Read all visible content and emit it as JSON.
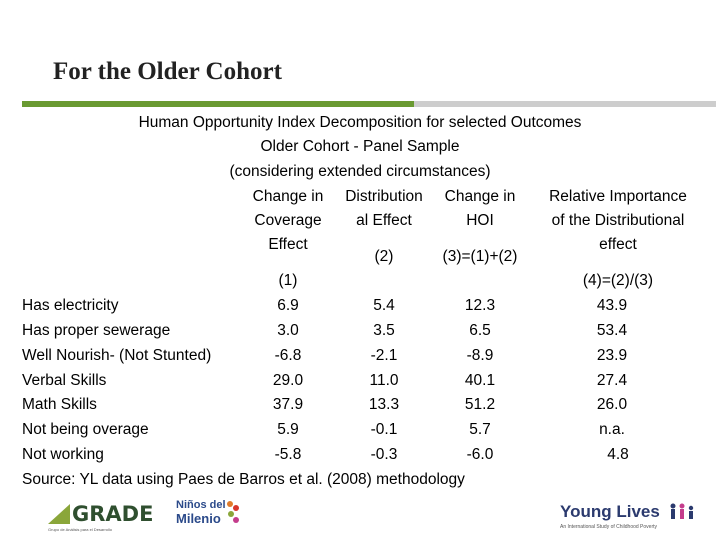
{
  "slide": {
    "title": "For the Older Cohort"
  },
  "table": {
    "title_lines": [
      "Human Opportunity Index Decomposition for selected Outcomes",
      "Older Cohort - Panel Sample",
      "(considering extended circumstances)"
    ],
    "headers": {
      "col1": [
        "Change in",
        "Coverage",
        "Effect"
      ],
      "col2": [
        "Distribution",
        "al Effect"
      ],
      "col3": [
        "Change in",
        "HOI"
      ],
      "col4": [
        "Relative Importance",
        "of the Distributional",
        "effect"
      ],
      "num1": "(1)",
      "num2": "(2)",
      "num3": "(3)=(1)+(2)",
      "num4": "(4)=(2)/(3)"
    },
    "rows": [
      {
        "label": "Has electricity",
        "c1": "6.9",
        "c2": "5.4",
        "c3": "12.3",
        "c4": "43.9"
      },
      {
        "label": "Has proper sewerage",
        "c1": "3.0",
        "c2": "3.5",
        "c3": "6.5",
        "c4": "53.4"
      },
      {
        "label": "Well Nourish- (Not Stunted)",
        "c1": "-6.8",
        "c2": "-2.1",
        "c3": "-8.9",
        "c4": "23.9"
      },
      {
        "label": "Verbal Skills",
        "c1": "29.0",
        "c2": "11.0",
        "c3": "40.1",
        "c4": "27.4"
      },
      {
        "label": "Math Skills",
        "c1": "37.9",
        "c2": "13.3",
        "c3": "51.2",
        "c4": "26.0"
      },
      {
        "label": "Not being overage",
        "c1": "5.9",
        "c2": "-0.1",
        "c3": "5.7",
        "c4": "n.a."
      },
      {
        "label": "Not working",
        "c1": "-5.8",
        "c2": "-0.3",
        "c3": "-6.0",
        "c4": "4.8"
      }
    ],
    "source": "Source: YL data using Paes de Barros et al. (2008) methodology"
  },
  "footer": {
    "grade_logo": {
      "word": "GRADE",
      "tagline": "Grupo de Análisis para el Desarrollo",
      "icon": "grade-triangle-logo"
    },
    "ninos_logo": {
      "line1": "Niños del",
      "line2": "Milenio",
      "icon": "ninos-del-milenio-logo"
    },
    "young_lives_logo": {
      "word": "Young Lives",
      "tagline": "An International Study of Childhood Poverty",
      "icon": "young-lives-figures-logo"
    },
    "colors": {
      "green_rule": "#6a9a32",
      "grey_rule": "#cdcdcd",
      "grade_green": "#8aa63a",
      "brand_blue": "#2b3a6e"
    }
  }
}
